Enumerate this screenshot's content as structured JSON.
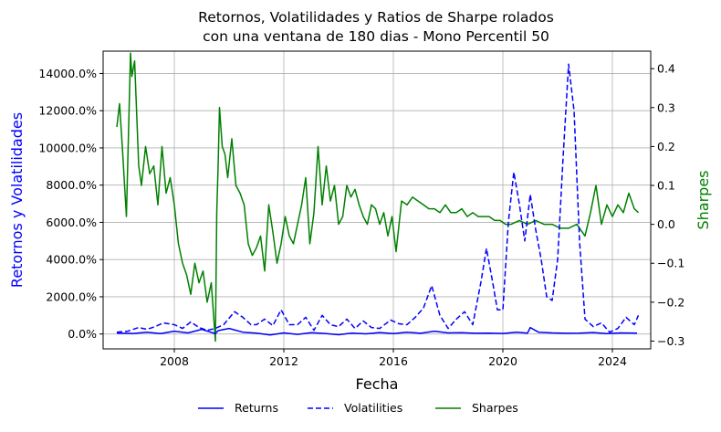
{
  "chart_data": {
    "type": "line",
    "title_line1": "Retornos, Volatilidades y Ratios de Sharpe rolados",
    "title_line2": "con una ventana de 180 dias - Mono Percentil 50",
    "xlabel": "Fecha",
    "ylabel_left": "Retornos y Volatilidades",
    "ylabel_right": "Sharpes",
    "xlim": [
      2005.4,
      2025.4
    ],
    "ylim_left": [
      -800,
      15200
    ],
    "ylim_right": [
      -0.32,
      0.445
    ],
    "x_ticks": [
      2008,
      2012,
      2016,
      2020,
      2024
    ],
    "x_tick_labels": [
      "2008",
      "2012",
      "2016",
      "2020",
      "2024"
    ],
    "y_left_ticks": [
      0,
      2000,
      4000,
      6000,
      8000,
      10000,
      12000,
      14000
    ],
    "y_left_tick_labels": [
      "0.0%",
      "2000.0%",
      "4000.0%",
      "6000.0%",
      "8000.0%",
      "10000.0%",
      "12000.0%",
      "14000.0%"
    ],
    "y_right_ticks": [
      -0.3,
      -0.2,
      -0.1,
      0.0,
      0.1,
      0.2,
      0.3,
      0.4
    ],
    "y_right_tick_labels": [
      "−0.3",
      "−0.2",
      "−0.1",
      "0.0",
      "0.1",
      "0.2",
      "0.3",
      "0.4"
    ],
    "grid": true,
    "legend_position": "bottom-center",
    "series": [
      {
        "name": "Returns",
        "axis": "left",
        "color": "#0000ff",
        "style": "solid",
        "x": [
          2005.9,
          2006.5,
          2007.0,
          2007.5,
          2008.0,
          2008.5,
          2009.0,
          2009.5,
          2009.6,
          2010.0,
          2010.5,
          2011.0,
          2011.5,
          2012.0,
          2012.5,
          2013.0,
          2013.5,
          2014.0,
          2014.5,
          2015.0,
          2015.5,
          2016.0,
          2016.5,
          2017.0,
          2017.5,
          2018.0,
          2018.5,
          2019.0,
          2019.5,
          2020.0,
          2020.5,
          2020.9,
          2021.0,
          2021.3,
          2021.8,
          2022.3,
          2022.8,
          2023.3,
          2023.8,
          2024.3,
          2024.9
        ],
        "values": [
          50,
          30,
          100,
          20,
          150,
          60,
          250,
          20,
          180,
          300,
          100,
          50,
          -50,
          60,
          -20,
          70,
          30,
          -40,
          50,
          10,
          80,
          20,
          100,
          40,
          150,
          60,
          70,
          40,
          50,
          30,
          100,
          50,
          350,
          100,
          60,
          40,
          50,
          80,
          20,
          60,
          50
        ]
      },
      {
        "name": "Volatilities",
        "axis": "left",
        "color": "#0000ff",
        "style": "dashed",
        "x": [
          2005.9,
          2006.3,
          2006.7,
          2007.0,
          2007.3,
          2007.6,
          2008.0,
          2008.3,
          2008.6,
          2008.9,
          2009.2,
          2009.5,
          2009.8,
          2010.2,
          2010.5,
          2010.8,
          2011.0,
          2011.3,
          2011.6,
          2011.9,
          2012.2,
          2012.5,
          2012.8,
          2013.1,
          2013.4,
          2013.7,
          2014.0,
          2014.3,
          2014.6,
          2014.9,
          2015.2,
          2015.5,
          2015.9,
          2016.2,
          2016.5,
          2016.8,
          2017.1,
          2017.4,
          2017.7,
          2018.0,
          2018.3,
          2018.6,
          2018.9,
          2019.2,
          2019.4,
          2019.6,
          2019.8,
          2020.0,
          2020.2,
          2020.4,
          2020.6,
          2020.8,
          2021.0,
          2021.2,
          2021.4,
          2021.6,
          2021.8,
          2022.0,
          2022.2,
          2022.4,
          2022.6,
          2022.8,
          2023.0,
          2023.3,
          2023.6,
          2023.9,
          2024.2,
          2024.5,
          2024.8,
          2024.95
        ],
        "values": [
          100,
          150,
          350,
          250,
          400,
          600,
          500,
          300,
          650,
          350,
          200,
          300,
          500,
          1200,
          900,
          500,
          500,
          800,
          450,
          1300,
          500,
          500,
          900,
          200,
          1000,
          500,
          400,
          800,
          300,
          700,
          350,
          300,
          750,
          550,
          500,
          900,
          1400,
          2600,
          1000,
          300,
          800,
          1200,
          500,
          2800,
          4600,
          3000,
          1300,
          1300,
          6000,
          8700,
          7000,
          5000,
          7500,
          5600,
          4000,
          2000,
          1800,
          4000,
          9500,
          14500,
          12000,
          5000,
          800,
          400,
          600,
          100,
          300,
          900,
          500,
          1000
        ]
      },
      {
        "name": "Sharpes",
        "axis": "right",
        "color": "#008000",
        "style": "solid",
        "x": [
          2005.9,
          2006.0,
          2006.1,
          2006.25,
          2006.4,
          2006.45,
          2006.55,
          2006.7,
          2006.8,
          2006.95,
          2007.1,
          2007.25,
          2007.4,
          2007.55,
          2007.7,
          2007.85,
          2008.0,
          2008.15,
          2008.3,
          2008.45,
          2008.6,
          2008.75,
          2008.9,
          2009.05,
          2009.2,
          2009.35,
          2009.5,
          2009.55,
          2009.6,
          2009.65,
          2009.75,
          2009.85,
          2009.95,
          2010.1,
          2010.25,
          2010.4,
          2010.55,
          2010.7,
          2010.85,
          2011.0,
          2011.15,
          2011.3,
          2011.45,
          2011.6,
          2011.75,
          2011.9,
          2012.05,
          2012.2,
          2012.35,
          2012.5,
          2012.65,
          2012.8,
          2012.95,
          2013.1,
          2013.25,
          2013.4,
          2013.55,
          2013.7,
          2013.85,
          2014.0,
          2014.15,
          2014.3,
          2014.45,
          2014.6,
          2014.75,
          2014.9,
          2015.05,
          2015.2,
          2015.35,
          2015.5,
          2015.65,
          2015.8,
          2015.95,
          2016.1,
          2016.3,
          2016.5,
          2016.7,
          2016.9,
          2017.1,
          2017.3,
          2017.5,
          2017.7,
          2017.9,
          2018.1,
          2018.3,
          2018.5,
          2018.7,
          2018.9,
          2019.1,
          2019.3,
          2019.5,
          2019.7,
          2019.9,
          2020.1,
          2020.3,
          2020.6,
          2020.9,
          2021.2,
          2021.5,
          2021.8,
          2022.1,
          2022.4,
          2022.7,
          2023.0,
          2023.2,
          2023.4,
          2023.6,
          2023.8,
          2024.0,
          2024.2,
          2024.4,
          2024.6,
          2024.8,
          2024.95
        ],
        "values": [
          0.25,
          0.31,
          0.2,
          0.02,
          0.44,
          0.38,
          0.42,
          0.15,
          0.1,
          0.2,
          0.13,
          0.15,
          0.05,
          0.2,
          0.08,
          0.12,
          0.05,
          -0.05,
          -0.1,
          -0.13,
          -0.18,
          -0.1,
          -0.15,
          -0.12,
          -0.2,
          -0.15,
          -0.3,
          0.03,
          0.15,
          0.3,
          0.2,
          0.18,
          0.12,
          0.22,
          0.1,
          0.08,
          0.05,
          -0.05,
          -0.08,
          -0.06,
          -0.03,
          -0.12,
          0.05,
          -0.02,
          -0.1,
          -0.05,
          0.02,
          -0.03,
          -0.05,
          0.0,
          0.05,
          0.12,
          -0.05,
          0.03,
          0.2,
          0.05,
          0.15,
          0.06,
          0.1,
          0.0,
          0.02,
          0.1,
          0.07,
          0.09,
          0.05,
          0.02,
          0.0,
          0.05,
          0.04,
          0.0,
          0.03,
          -0.03,
          0.02,
          -0.07,
          0.06,
          0.05,
          0.07,
          0.06,
          0.05,
          0.04,
          0.04,
          0.03,
          0.05,
          0.03,
          0.03,
          0.04,
          0.02,
          0.03,
          0.02,
          0.02,
          0.02,
          0.01,
          0.01,
          0.0,
          0.0,
          0.01,
          0.0,
          0.01,
          0.0,
          0.0,
          -0.01,
          -0.01,
          0.0,
          -0.03,
          0.03,
          0.1,
          0.0,
          0.05,
          0.02,
          0.05,
          0.03,
          0.08,
          0.04,
          0.03
        ]
      }
    ]
  }
}
